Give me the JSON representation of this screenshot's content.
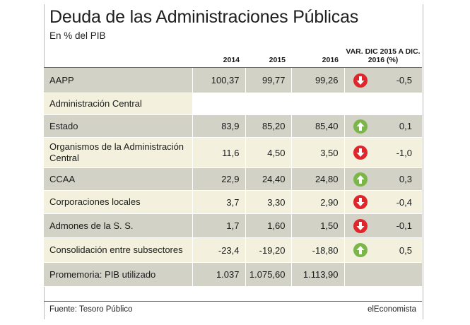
{
  "title": "Deuda de las Administraciones Públicas",
  "subtitle": "En % del PIB",
  "columns": [
    "2014",
    "2015",
    "2016",
    "VAR. DIC 2015 A DIC. 2016 (%)"
  ],
  "rows": [
    {
      "label": "AAPP",
      "v2014": "100,37",
      "v2015": "99,77",
      "v2016": "99,26",
      "trend": "down",
      "change": "-0,5"
    },
    {
      "label": "Administración Central",
      "v2014": "",
      "v2015": "",
      "v2016": "",
      "trend": "",
      "change": ""
    },
    {
      "label": "Estado",
      "v2014": "83,9",
      "v2015": "85,20",
      "v2016": "85,40",
      "trend": "up",
      "change": "0,1"
    },
    {
      "label": "Organismos de la Administración Central",
      "v2014": "11,6",
      "v2015": "4,50",
      "v2016": "3,50",
      "trend": "down",
      "change": "-1,0"
    },
    {
      "label": "CCAA",
      "v2014": "22,9",
      "v2015": "24,40",
      "v2016": "24,80",
      "trend": "up",
      "change": "0,3"
    },
    {
      "label": "Corporaciones locales",
      "v2014": "3,7",
      "v2015": "3,30",
      "v2016": "2,90",
      "trend": "down",
      "change": "-0,4"
    },
    {
      "label": "Admones de la S. S.",
      "v2014": "1,7",
      "v2015": "1,60",
      "v2016": "1,50",
      "trend": "down",
      "change": "-0,1"
    },
    {
      "label": "Consolidación entre subsectores",
      "v2014": "-23,4",
      "v2015": "-19,20",
      "v2016": "-18,80",
      "trend": "up",
      "change": "0,5"
    },
    {
      "label": "Promemoria: PIB utilizado",
      "v2014": "1.037",
      "v2015": "1.075,60",
      "v2016": "1.113,90",
      "trend": "",
      "change": ""
    }
  ],
  "footer": {
    "source": "Fuente: Tesoro Público",
    "brand": "elEconomista"
  },
  "colors": {
    "dark_row": "#d3d2c7",
    "light_row": "#f3f1dd",
    "up": "#7ab648",
    "down": "#e0262b"
  }
}
